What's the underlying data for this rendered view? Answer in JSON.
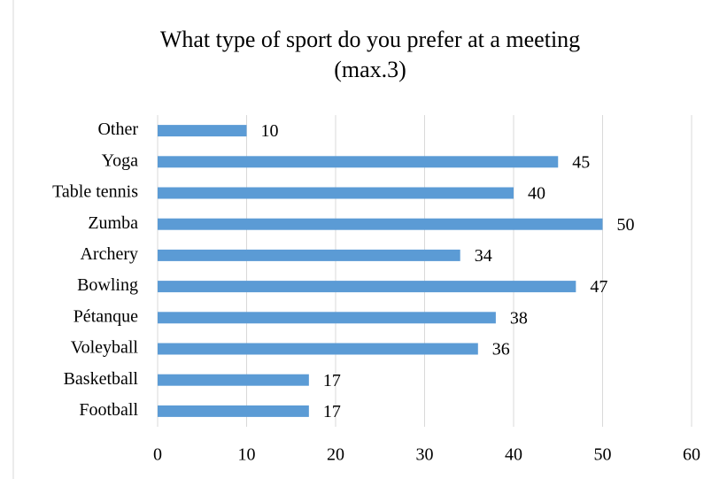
{
  "chart_data": {
    "type": "bar",
    "orientation": "horizontal",
    "title": [
      "What type of sport do you prefer at a meeting",
      "(max.3)"
    ],
    "categories": [
      "Other",
      "Yoga",
      "Table tennis",
      "Zumba",
      "Archery",
      "Bowling",
      "Pétanque",
      "Voleyball",
      "Basketball",
      "Football"
    ],
    "values": [
      10,
      45,
      40,
      50,
      34,
      47,
      38,
      36,
      17,
      17
    ],
    "color": "#5b9bd5",
    "xlim": [
      0,
      60
    ],
    "xticks": [
      0,
      10,
      20,
      30,
      40,
      50,
      60
    ],
    "grid": true
  }
}
